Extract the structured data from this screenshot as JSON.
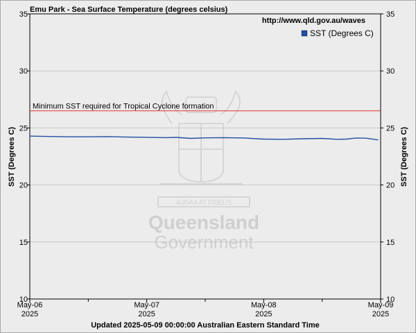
{
  "chart_data": {
    "type": "line",
    "title": "Emu Park - Sea Surface Temperature (degrees celsius)",
    "source_url": "http://www.qld.gov.au/waves",
    "footer": "Updated 2025-05-09 00:00:00 Australian Eastern Standard Time",
    "ylabel": "SST (Degrees C)",
    "ylim": [
      10,
      35
    ],
    "yticks": [
      "10",
      "15",
      "20",
      "25",
      "30",
      "35"
    ],
    "xlim_hours": [
      0,
      72
    ],
    "xticks": [
      {
        "label": "May-06",
        "year": "2025"
      },
      {
        "label": "May-07",
        "year": "2025"
      },
      {
        "label": "May-08",
        "year": "2025"
      },
      {
        "label": "May-09",
        "year": "2025"
      }
    ],
    "legend": {
      "label": "SST (Degrees C)",
      "placement": "top-right"
    },
    "threshold": {
      "value": 26.5,
      "label": "Minimum SST required for Tropical Cyclone formation",
      "color": "#e03030"
    },
    "series": [
      {
        "name": "SST (Degrees C)",
        "color": "#1f4fa0",
        "x_hours": [
          0,
          4,
          8,
          12,
          16,
          20,
          24,
          28,
          30,
          33,
          36,
          40,
          44,
          48,
          52,
          56,
          60,
          63,
          65,
          67,
          69,
          71.5
        ],
        "values": [
          24.28,
          24.25,
          24.22,
          24.22,
          24.24,
          24.2,
          24.18,
          24.15,
          24.17,
          24.08,
          24.13,
          24.15,
          24.12,
          24.02,
          24.0,
          24.05,
          24.08,
          24.0,
          24.02,
          24.12,
          24.1,
          23.95
        ]
      }
    ],
    "grid": true
  },
  "watermark": {
    "line1": "Queensland",
    "line2": "Government",
    "motto": "AUDAX AT FIDELIS"
  },
  "colors": {
    "background": "#ececec",
    "grid": "#c8c8c8",
    "axis": "#000000"
  }
}
